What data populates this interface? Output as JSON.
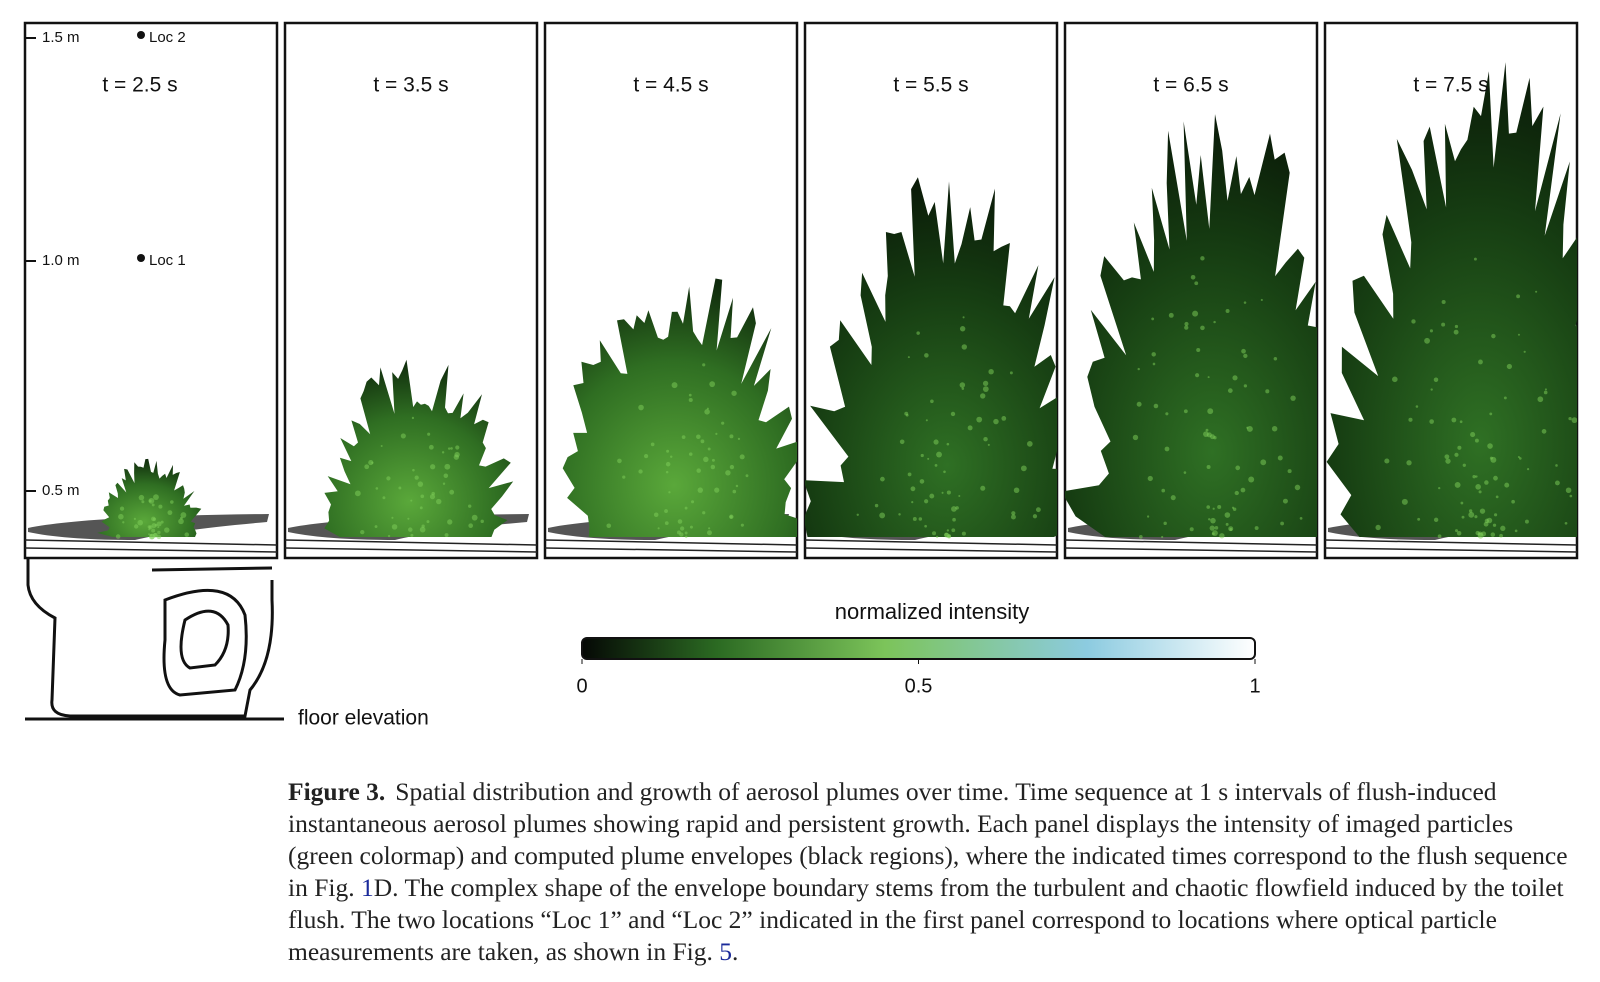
{
  "panels": [
    {
      "time": "t = 2.5 s"
    },
    {
      "time": "t = 3.5 s"
    },
    {
      "time": "t = 4.5 s"
    },
    {
      "time": "t = 5.5 s"
    },
    {
      "time": "t = 6.5 s"
    },
    {
      "time": "t = 7.5 s"
    }
  ],
  "heights": [
    "1.5 m",
    "1.0 m",
    "0.5 m"
  ],
  "locations": [
    "Loc 2",
    "Loc 1"
  ],
  "floor_label": "floor elevation",
  "colorbar": {
    "title": "normalized intensity",
    "lim": [
      0,
      1
    ],
    "ticks": [
      0,
      0.5,
      1
    ]
  },
  "caption": {
    "label": "Figure 3.",
    "text0": "Spatial distribution and growth of aerosol plumes over time. Time sequence at 1 s intervals of flush-induced instantaneous aerosol plumes showing rapid and persistent growth. Each panel displays the intensity of imaged particles (green colormap) and computed plume envelopes (black regions), where the indicated times correspond to the flush sequence in Fig. ",
    "ref0": "1",
    "text1": "D. The complex shape of the envelope boundary stems from the turbulent and chaotic flowfield induced by the toilet flush. The two locations “Loc 1” and “Loc 2” indicated in the first panel correspond to locations where optical particle measurements are taken, as shown in Fig. ",
    "ref1": "5",
    "text2": "."
  }
}
